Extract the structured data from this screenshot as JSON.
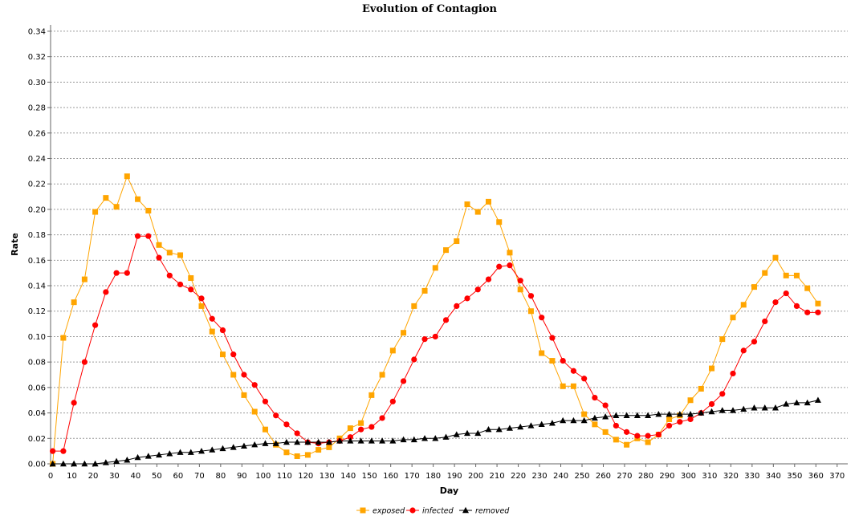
{
  "chart_data": {
    "type": "line",
    "title": "Evolution of Contagion",
    "xlabel": "Day",
    "ylabel": "Rate",
    "xlim": [
      0,
      375
    ],
    "ylim": [
      0,
      0.345
    ],
    "x_ticks": [
      0,
      10,
      20,
      30,
      40,
      50,
      60,
      70,
      80,
      90,
      100,
      110,
      120,
      130,
      140,
      150,
      160,
      170,
      180,
      190,
      200,
      210,
      220,
      230,
      240,
      250,
      260,
      270,
      280,
      290,
      300,
      310,
      320,
      330,
      340,
      350,
      360,
      370
    ],
    "y_ticks": [
      0.0,
      0.02,
      0.04,
      0.06,
      0.08,
      0.1,
      0.12,
      0.14,
      0.16,
      0.18,
      0.2,
      0.22,
      0.24,
      0.26,
      0.28,
      0.3,
      0.32,
      0.34
    ],
    "grid": "horizontal-dashed",
    "legend_position": "bottom",
    "x": [
      1,
      6,
      11,
      16,
      21,
      26,
      31,
      36,
      41,
      46,
      51,
      56,
      61,
      66,
      71,
      76,
      81,
      86,
      91,
      96,
      101,
      106,
      111,
      116,
      121,
      126,
      131,
      136,
      141,
      146,
      151,
      156,
      161,
      166,
      171,
      176,
      181,
      186,
      191,
      196,
      201,
      206,
      211,
      216,
      221,
      226,
      231,
      236,
      241,
      246,
      251,
      256,
      261,
      266,
      271,
      276,
      281,
      286,
      291,
      296,
      301,
      306,
      311,
      316,
      321,
      326,
      331,
      336,
      341,
      346,
      351,
      356,
      361
    ],
    "series": [
      {
        "name": "exposed",
        "color": "#FFA500",
        "marker": "square",
        "values": [
          0.0,
          0.099,
          0.127,
          0.145,
          0.198,
          0.209,
          0.202,
          0.226,
          0.208,
          0.199,
          0.172,
          0.166,
          0.164,
          0.146,
          0.124,
          0.104,
          0.086,
          0.07,
          0.054,
          0.041,
          0.027,
          0.015,
          0.009,
          0.006,
          0.007,
          0.011,
          0.013,
          0.02,
          0.028,
          0.032,
          0.054,
          0.07,
          0.089,
          0.103,
          0.124,
          0.136,
          0.154,
          0.168,
          0.175,
          0.204,
          0.198,
          0.206,
          0.19,
          0.166,
          0.137,
          0.12,
          0.087,
          0.081,
          0.061,
          0.061,
          0.039,
          0.031,
          0.025,
          0.019,
          0.015,
          0.02,
          0.017,
          0.023,
          0.035,
          0.038,
          0.05,
          0.059,
          0.075,
          0.098,
          0.115,
          0.125,
          0.139,
          0.15,
          0.162,
          0.148,
          0.148,
          0.138,
          0.126
        ]
      },
      {
        "name": "infected",
        "color": "#FF0000",
        "marker": "circle",
        "values": [
          0.01,
          0.01,
          0.048,
          0.08,
          0.109,
          0.135,
          0.15,
          0.15,
          0.179,
          0.179,
          0.162,
          0.148,
          0.141,
          0.137,
          0.13,
          0.114,
          0.105,
          0.086,
          0.07,
          0.062,
          0.049,
          0.038,
          0.031,
          0.024,
          0.017,
          0.016,
          0.017,
          0.018,
          0.021,
          0.027,
          0.029,
          0.036,
          0.049,
          0.065,
          0.082,
          0.098,
          0.1,
          0.113,
          0.124,
          0.13,
          0.137,
          0.145,
          0.155,
          0.156,
          0.144,
          0.132,
          0.115,
          0.099,
          0.081,
          0.073,
          0.067,
          0.052,
          0.046,
          0.03,
          0.025,
          0.022,
          0.022,
          0.023,
          0.03,
          0.033,
          0.035,
          0.04,
          0.047,
          0.055,
          0.071,
          0.089,
          0.096,
          0.112,
          0.127,
          0.134,
          0.124,
          0.119,
          0.119
        ]
      },
      {
        "name": "removed",
        "color": "#000000",
        "marker": "triangle",
        "values": [
          0.0,
          0.0,
          0.0,
          0.0,
          0.0,
          0.001,
          0.002,
          0.003,
          0.005,
          0.006,
          0.007,
          0.008,
          0.009,
          0.009,
          0.01,
          0.011,
          0.012,
          0.013,
          0.014,
          0.015,
          0.016,
          0.016,
          0.017,
          0.017,
          0.017,
          0.017,
          0.017,
          0.018,
          0.018,
          0.018,
          0.018,
          0.018,
          0.018,
          0.019,
          0.019,
          0.02,
          0.02,
          0.021,
          0.023,
          0.024,
          0.024,
          0.027,
          0.027,
          0.028,
          0.029,
          0.03,
          0.031,
          0.032,
          0.034,
          0.034,
          0.034,
          0.036,
          0.037,
          0.038,
          0.038,
          0.038,
          0.038,
          0.039,
          0.039,
          0.039,
          0.039,
          0.04,
          0.041,
          0.042,
          0.042,
          0.043,
          0.044,
          0.044,
          0.044,
          0.047,
          0.048,
          0.048,
          0.05
        ]
      }
    ]
  }
}
